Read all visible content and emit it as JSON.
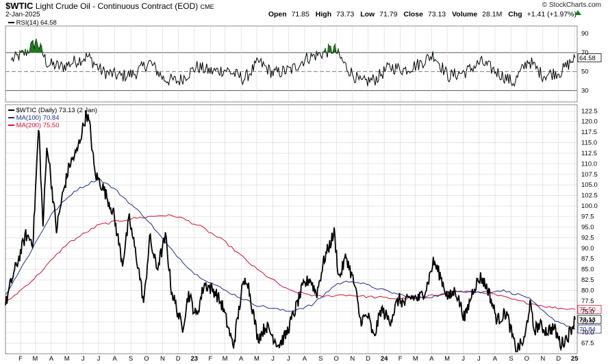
{
  "header": {
    "symbol": "$WTIC",
    "name": "Light Crude Oil - Continuous Contract (EOD)",
    "exchange": "CME",
    "date": "2-Jan-2025",
    "brand": "© StockCharts.com",
    "ohlc": {
      "open_label": "Open",
      "open": "71.85",
      "high_label": "High",
      "high": "73.73",
      "low_label": "Low",
      "low": "71.79",
      "close_label": "Close",
      "close": "73.13",
      "volume_label": "Volume",
      "volume": "28.1M",
      "chg_label": "Chg",
      "chg": "+1.41 (+1.97%)",
      "chg_icon": "up-triangle-icon"
    }
  },
  "colors": {
    "price": "#000000",
    "ma100": "#1c2a8a",
    "ma200": "#c8102e",
    "rsi": "#000000",
    "rsi_fill": "#1a7a1a",
    "grid": "#d6d6d6"
  },
  "chart_data": [
    {
      "type": "line",
      "title": "RSI(14) 64.58",
      "legend": [
        {
          "name": "RSI(14)",
          "value": "64.58"
        }
      ],
      "ylim": [
        18,
        98
      ],
      "y_ticks": [
        30,
        50,
        70,
        90
      ],
      "reference_lines": [
        30,
        50,
        70
      ],
      "current_value_label": "64.58",
      "x": [
        "2022-01-14",
        "2022-02-11",
        "2022-03-04",
        "2022-03-25",
        "2022-04-22",
        "2022-05-13",
        "2022-06-10",
        "2022-07-08",
        "2022-08-12",
        "2022-09-09",
        "2022-10-07",
        "2022-11-04",
        "2022-12-02",
        "2023-01-06",
        "2023-02-03",
        "2023-03-03",
        "2023-04-07",
        "2023-05-05",
        "2023-06-02",
        "2023-07-07",
        "2023-08-04",
        "2023-09-08",
        "2023-09-27",
        "2023-10-20",
        "2023-11-17",
        "2023-12-15",
        "2024-01-12",
        "2024-02-09",
        "2024-03-08",
        "2024-04-05",
        "2024-05-03",
        "2024-06-07",
        "2024-07-05",
        "2024-08-09",
        "2024-09-06",
        "2024-10-04",
        "2024-11-01",
        "2024-12-06",
        "2025-01-02"
      ],
      "values": [
        62,
        70,
        82,
        58,
        55,
        60,
        66,
        50,
        45,
        48,
        60,
        42,
        40,
        55,
        50,
        52,
        42,
        60,
        48,
        52,
        64,
        70,
        74,
        55,
        38,
        42,
        55,
        52,
        58,
        68,
        45,
        50,
        60,
        48,
        38,
        62,
        46,
        50,
        64.58
      ]
    },
    {
      "type": "line",
      "legend": [
        {
          "name": "$WTIC (Daily)",
          "value": "73.13 (2 Jan)"
        },
        {
          "name": "MA(100)",
          "value": "70.84"
        },
        {
          "name": "MA(200)",
          "value": "75.50"
        }
      ],
      "ylim": [
        65,
        124
      ],
      "y_ticks": [
        67.5,
        70.0,
        72.5,
        75.0,
        77.5,
        80.0,
        82.5,
        85.0,
        87.5,
        90.0,
        92.5,
        95.0,
        97.5,
        100.0,
        102.5,
        105.0,
        107.5,
        110.0,
        112.5,
        115.0,
        117.5,
        120.0,
        122.5
      ],
      "x_tick_labels": [
        "F",
        "M",
        "A",
        "M",
        "J",
        "J",
        "A",
        "S",
        "O",
        "N",
        "D",
        "23",
        "F",
        "M",
        "A",
        "M",
        "J",
        "J",
        "A",
        "S",
        "O",
        "N",
        "D",
        "24",
        "F",
        "M",
        "A",
        "M",
        "J",
        "J",
        "A",
        "S",
        "O",
        "N",
        "D",
        "25"
      ],
      "x_tick_dates": [
        "2022-02-01",
        "2022-03-01",
        "2022-04-01",
        "2022-05-01",
        "2022-06-01",
        "2022-07-01",
        "2022-08-01",
        "2022-09-01",
        "2022-10-01",
        "2022-11-01",
        "2022-12-01",
        "2023-01-01",
        "2023-02-01",
        "2023-03-01",
        "2023-04-01",
        "2023-05-01",
        "2023-06-01",
        "2023-07-01",
        "2023-08-01",
        "2023-09-01",
        "2023-10-01",
        "2023-11-01",
        "2023-12-01",
        "2024-01-01",
        "2024-02-01",
        "2024-03-01",
        "2024-04-01",
        "2024-05-01",
        "2024-06-01",
        "2024-07-01",
        "2024-08-01",
        "2024-09-01",
        "2024-10-01",
        "2024-11-01",
        "2024-12-01",
        "2025-01-01"
      ],
      "x_range": [
        "2022-01-03",
        "2025-01-06"
      ],
      "price_labels": [
        {
          "value": "75.50",
          "series": "MA(200)"
        },
        {
          "value": "73.13",
          "series": "$WTIC (Daily)"
        },
        {
          "value": "70.84",
          "series": "MA(100)"
        }
      ],
      "series": [
        {
          "name": "$WTIC (Daily)",
          "x": [
            "2022-01-03",
            "2022-01-14",
            "2022-01-28",
            "2022-02-11",
            "2022-02-25",
            "2022-03-08",
            "2022-03-16",
            "2022-03-24",
            "2022-04-11",
            "2022-04-22",
            "2022-05-06",
            "2022-05-20",
            "2022-06-08",
            "2022-06-14",
            "2022-06-24",
            "2022-07-08",
            "2022-07-29",
            "2022-08-16",
            "2022-08-29",
            "2022-09-16",
            "2022-09-26",
            "2022-10-07",
            "2022-10-21",
            "2022-11-07",
            "2022-11-18",
            "2022-12-09",
            "2022-12-21",
            "2023-01-05",
            "2023-01-20",
            "2023-02-10",
            "2023-02-24",
            "2023-03-17",
            "2023-04-03",
            "2023-04-12",
            "2023-05-03",
            "2023-05-19",
            "2023-06-12",
            "2023-06-26",
            "2023-07-14",
            "2023-07-28",
            "2023-08-11",
            "2023-08-24",
            "2023-09-08",
            "2023-09-27",
            "2023-10-06",
            "2023-10-20",
            "2023-11-06",
            "2023-11-16",
            "2023-12-01",
            "2023-12-12",
            "2023-12-26",
            "2024-01-12",
            "2024-01-29",
            "2024-02-09",
            "2024-02-23",
            "2024-03-08",
            "2024-03-22",
            "2024-04-05",
            "2024-04-19",
            "2024-05-03",
            "2024-05-17",
            "2024-06-04",
            "2024-06-21",
            "2024-07-05",
            "2024-07-19",
            "2024-08-05",
            "2024-08-23",
            "2024-09-10",
            "2024-09-27",
            "2024-10-07",
            "2024-10-15",
            "2024-10-25",
            "2024-11-08",
            "2024-11-22",
            "2024-12-06",
            "2024-12-20",
            "2025-01-02"
          ],
          "values": [
            76.5,
            82.1,
            87.4,
            93.1,
            91.6,
            119.4,
            95.0,
            114.9,
            94.3,
            102.1,
            109.8,
            112.7,
            122.1,
            118.9,
            107.6,
            104.8,
            98.6,
            86.5,
            97.0,
            85.1,
            76.7,
            92.6,
            85.1,
            92.8,
            80.1,
            71.0,
            79.3,
            73.7,
            81.6,
            79.7,
            76.3,
            66.7,
            80.4,
            83.3,
            68.6,
            71.6,
            67.1,
            69.4,
            75.4,
            80.6,
            82.9,
            79.1,
            87.5,
            93.7,
            82.8,
            88.1,
            80.8,
            72.9,
            74.0,
            68.6,
            75.6,
            72.7,
            78.0,
            76.8,
            78.5,
            78.0,
            80.6,
            86.9,
            83.1,
            78.1,
            80.1,
            73.3,
            80.7,
            83.2,
            80.1,
            72.9,
            74.8,
            65.8,
            68.2,
            77.1,
            70.6,
            71.8,
            70.4,
            71.2,
            67.2,
            69.4,
            73.13
          ]
        },
        {
          "name": "MA(100)",
          "x": [
            "2022-01-03",
            "2022-02-15",
            "2022-04-01",
            "2022-05-15",
            "2022-07-01",
            "2022-08-01",
            "2022-10-01",
            "2022-11-15",
            "2023-01-01",
            "2023-03-01",
            "2023-05-01",
            "2023-07-01",
            "2023-08-15",
            "2023-10-01",
            "2023-11-01",
            "2024-01-01",
            "2024-03-01",
            "2024-04-15",
            "2024-05-15",
            "2024-07-01",
            "2024-08-15",
            "2024-10-01",
            "2024-11-15",
            "2025-01-02"
          ],
          "values": [
            79.0,
            88.0,
            98.0,
            103.5,
            106.5,
            104.0,
            97.0,
            90.0,
            84.0,
            80.0,
            76.5,
            75.0,
            76.5,
            81.5,
            82.3,
            80.0,
            78.0,
            78.8,
            80.0,
            79.5,
            80.0,
            78.5,
            73.5,
            70.84
          ]
        },
        {
          "name": "MA(200)",
          "x": [
            "2022-01-03",
            "2022-03-01",
            "2022-05-01",
            "2022-07-01",
            "2022-09-01",
            "2022-11-01",
            "2022-12-01",
            "2023-01-15",
            "2023-03-01",
            "2023-05-01",
            "2023-07-01",
            "2023-09-01",
            "2023-10-15",
            "2023-12-01",
            "2024-02-01",
            "2024-03-15",
            "2024-05-15",
            "2024-07-15",
            "2024-09-15",
            "2024-11-15",
            "2025-01-02"
          ],
          "values": [
            77.0,
            83.0,
            91.0,
            95.5,
            97.0,
            97.8,
            97.5,
            95.0,
            91.5,
            85.0,
            80.0,
            78.5,
            79.0,
            78.5,
            78.0,
            78.3,
            79.8,
            79.5,
            77.5,
            76.0,
            75.5
          ]
        }
      ]
    }
  ]
}
